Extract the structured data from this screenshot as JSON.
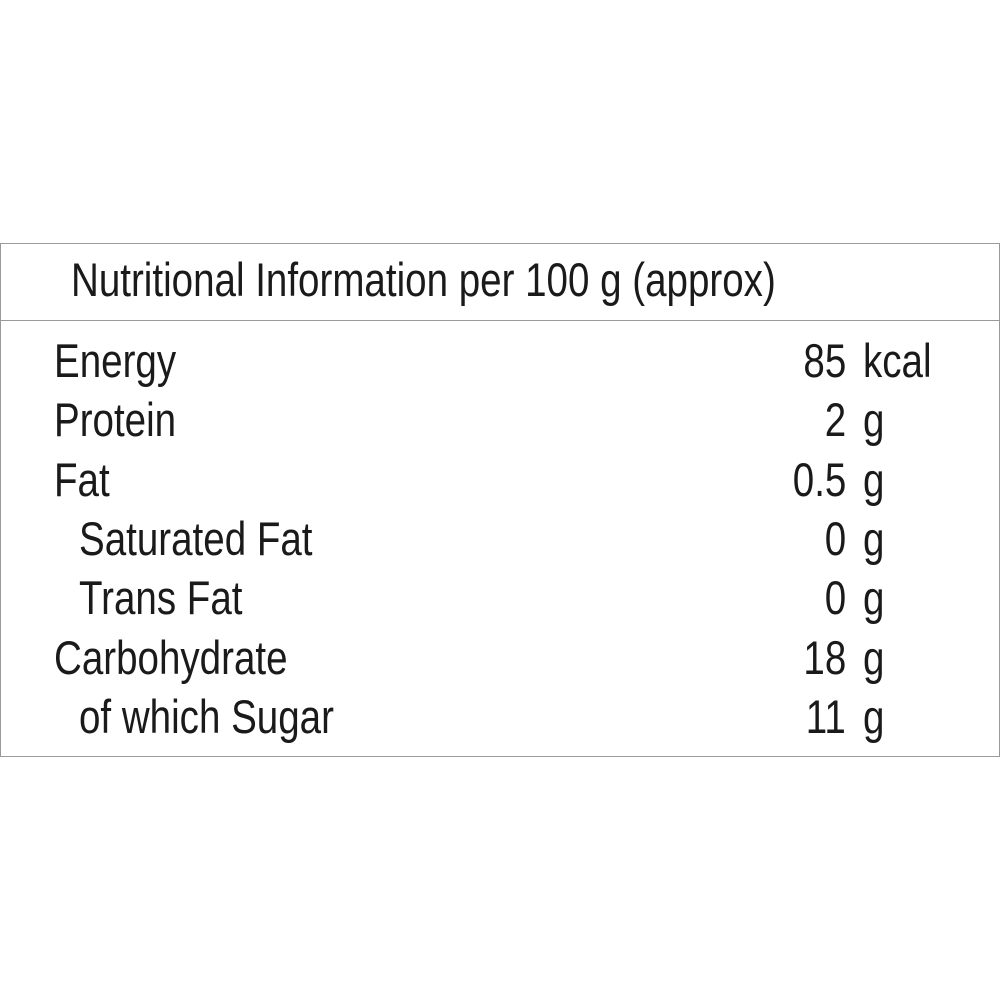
{
  "title": "Nutritional Information per 100 g (approx)",
  "rows": [
    {
      "label": "Energy",
      "value": 85,
      "unit": "kcal"
    },
    {
      "label": "Protein",
      "value": 2,
      "unit": "g"
    },
    {
      "label": "Fat",
      "value": 0.5,
      "unit": "g",
      "subrows": [
        {
          "label": "Saturated Fat",
          "value": 0,
          "unit": "g"
        },
        {
          "label": "Trans Fat",
          "value": 0,
          "unit": "g"
        }
      ]
    },
    {
      "label": "Carbohydrate",
      "value": 18,
      "unit": "g",
      "subrows": [
        {
          "label": "of which Sugar",
          "value": 11,
          "unit": "g"
        }
      ]
    }
  ]
}
